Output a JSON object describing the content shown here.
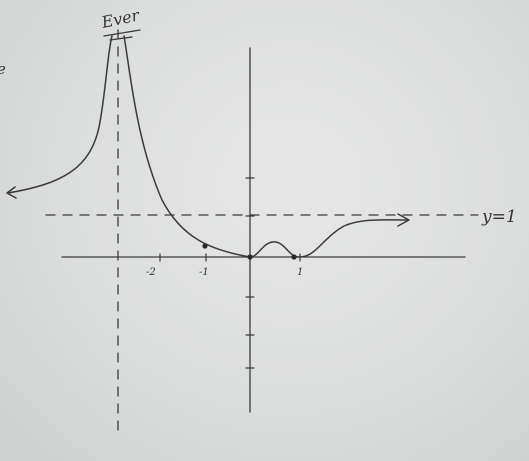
{
  "asymptote_label": "y=1",
  "tick_labels": [
    "-2",
    "-1",
    "1"
  ],
  "top_label": "Ever",
  "edge_letter": "e",
  "colors": {
    "board": "#dcdedd",
    "ink": "#3a3a3a"
  }
}
